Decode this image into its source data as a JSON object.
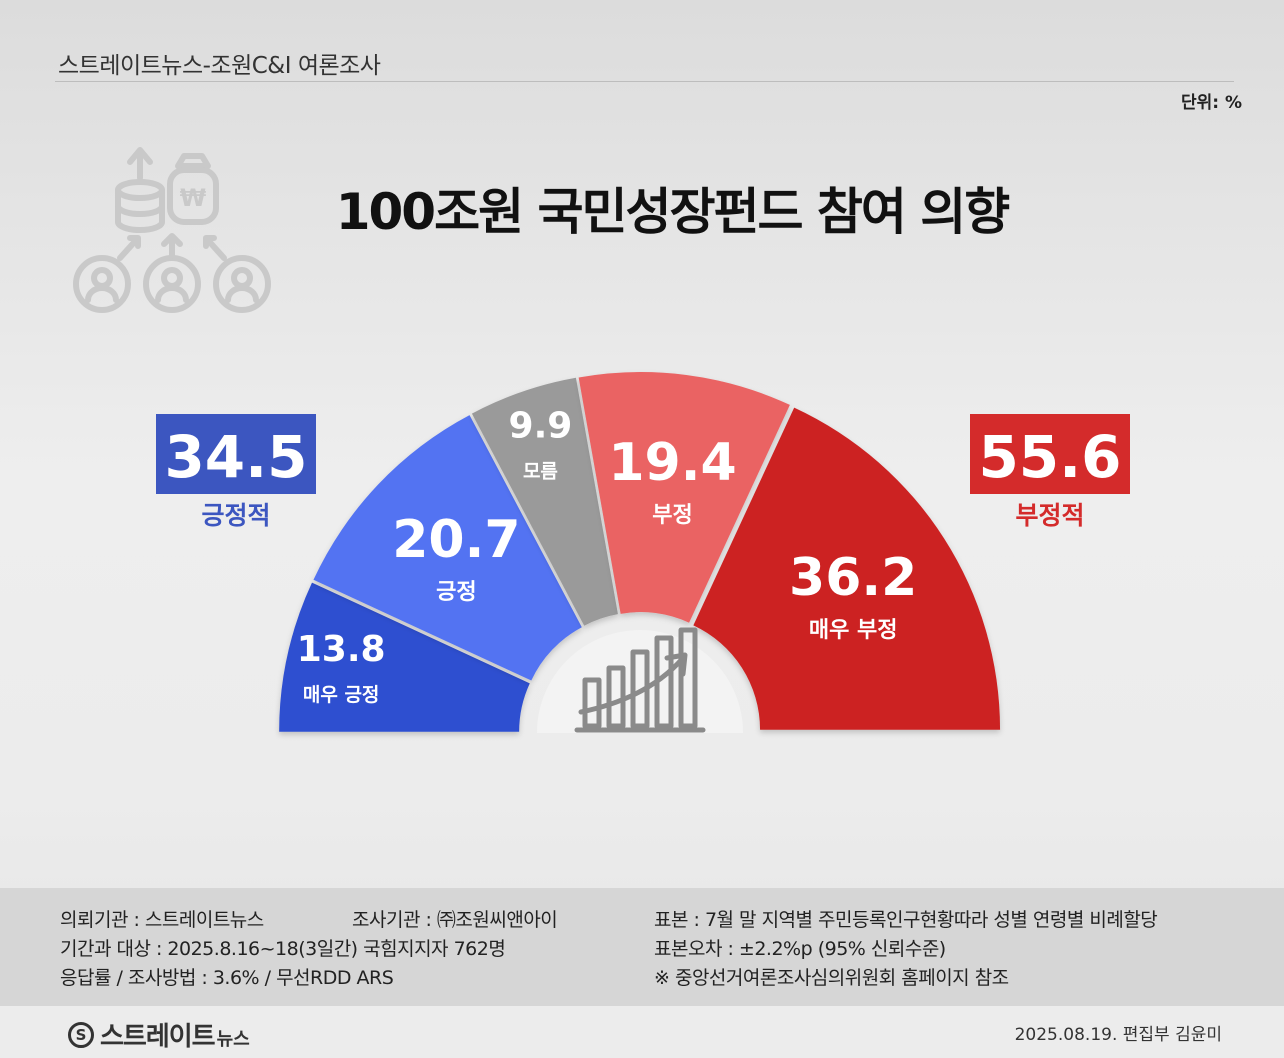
{
  "header": {
    "title": "스트레이트뉴스-조원C&I 여론조사",
    "unit": "단위: %"
  },
  "main_title": "100조원 국민성장펀드 참여 의향",
  "icons": {
    "decor": "money-investment-icon",
    "center": "growth-chart-icon",
    "brand": "straight-news-logo-icon"
  },
  "colors": {
    "very_positive": "#2f4fd0",
    "positive": "#5273f2",
    "unknown": "#9a9a9a",
    "negative": "#ea6464",
    "very_negative": "#cc2222",
    "positive_total": "#3c56c0",
    "negative_total": "#d42b2b"
  },
  "chart_data": {
    "type": "pie",
    "variant": "half-donut",
    "title": "100조원 국민성장펀드 참여 의향",
    "unit": "%",
    "slices": [
      {
        "label": "매우 긍정",
        "value": 13.8,
        "color": "#2f4fd0"
      },
      {
        "label": "긍정",
        "value": 20.7,
        "color": "#5273f2"
      },
      {
        "label": "모름",
        "value": 9.9,
        "color": "#9a9a9a"
      },
      {
        "label": "부정",
        "value": 19.4,
        "color": "#ea6464"
      },
      {
        "label": "매우 부정",
        "value": 36.2,
        "color": "#cc2222"
      }
    ],
    "totals": [
      {
        "label": "긍정적",
        "value": 34.5,
        "position": "left",
        "color": "#3c56c0"
      },
      {
        "label": "부정적",
        "value": 55.6,
        "position": "right",
        "color": "#d42b2b"
      }
    ]
  },
  "footer": {
    "client": "의뢰기관 : 스트레이트뉴스",
    "agency": "조사기관 : ㈜조원씨앤아이",
    "period": "기간과 대상 : 2025.8.16~18(3일간) 국힘지지자 762명",
    "response": "응답률 / 조사방법 : 3.6% / 무선RDD ARS",
    "sample": "표본 : 7월 말 지역별 주민등록인구현황따라 성별 연령별 비례할당",
    "error": "표본오차 : ±2.2%p (95% 신뢰수준)",
    "note": "※ 중앙선거여론조사심의위원회 홈페이지 참조"
  },
  "brand": {
    "logo_letter": "S",
    "name": "스트레이트",
    "sub": "뉴스"
  },
  "credit": "2025.08.19. 편집부 김윤미"
}
